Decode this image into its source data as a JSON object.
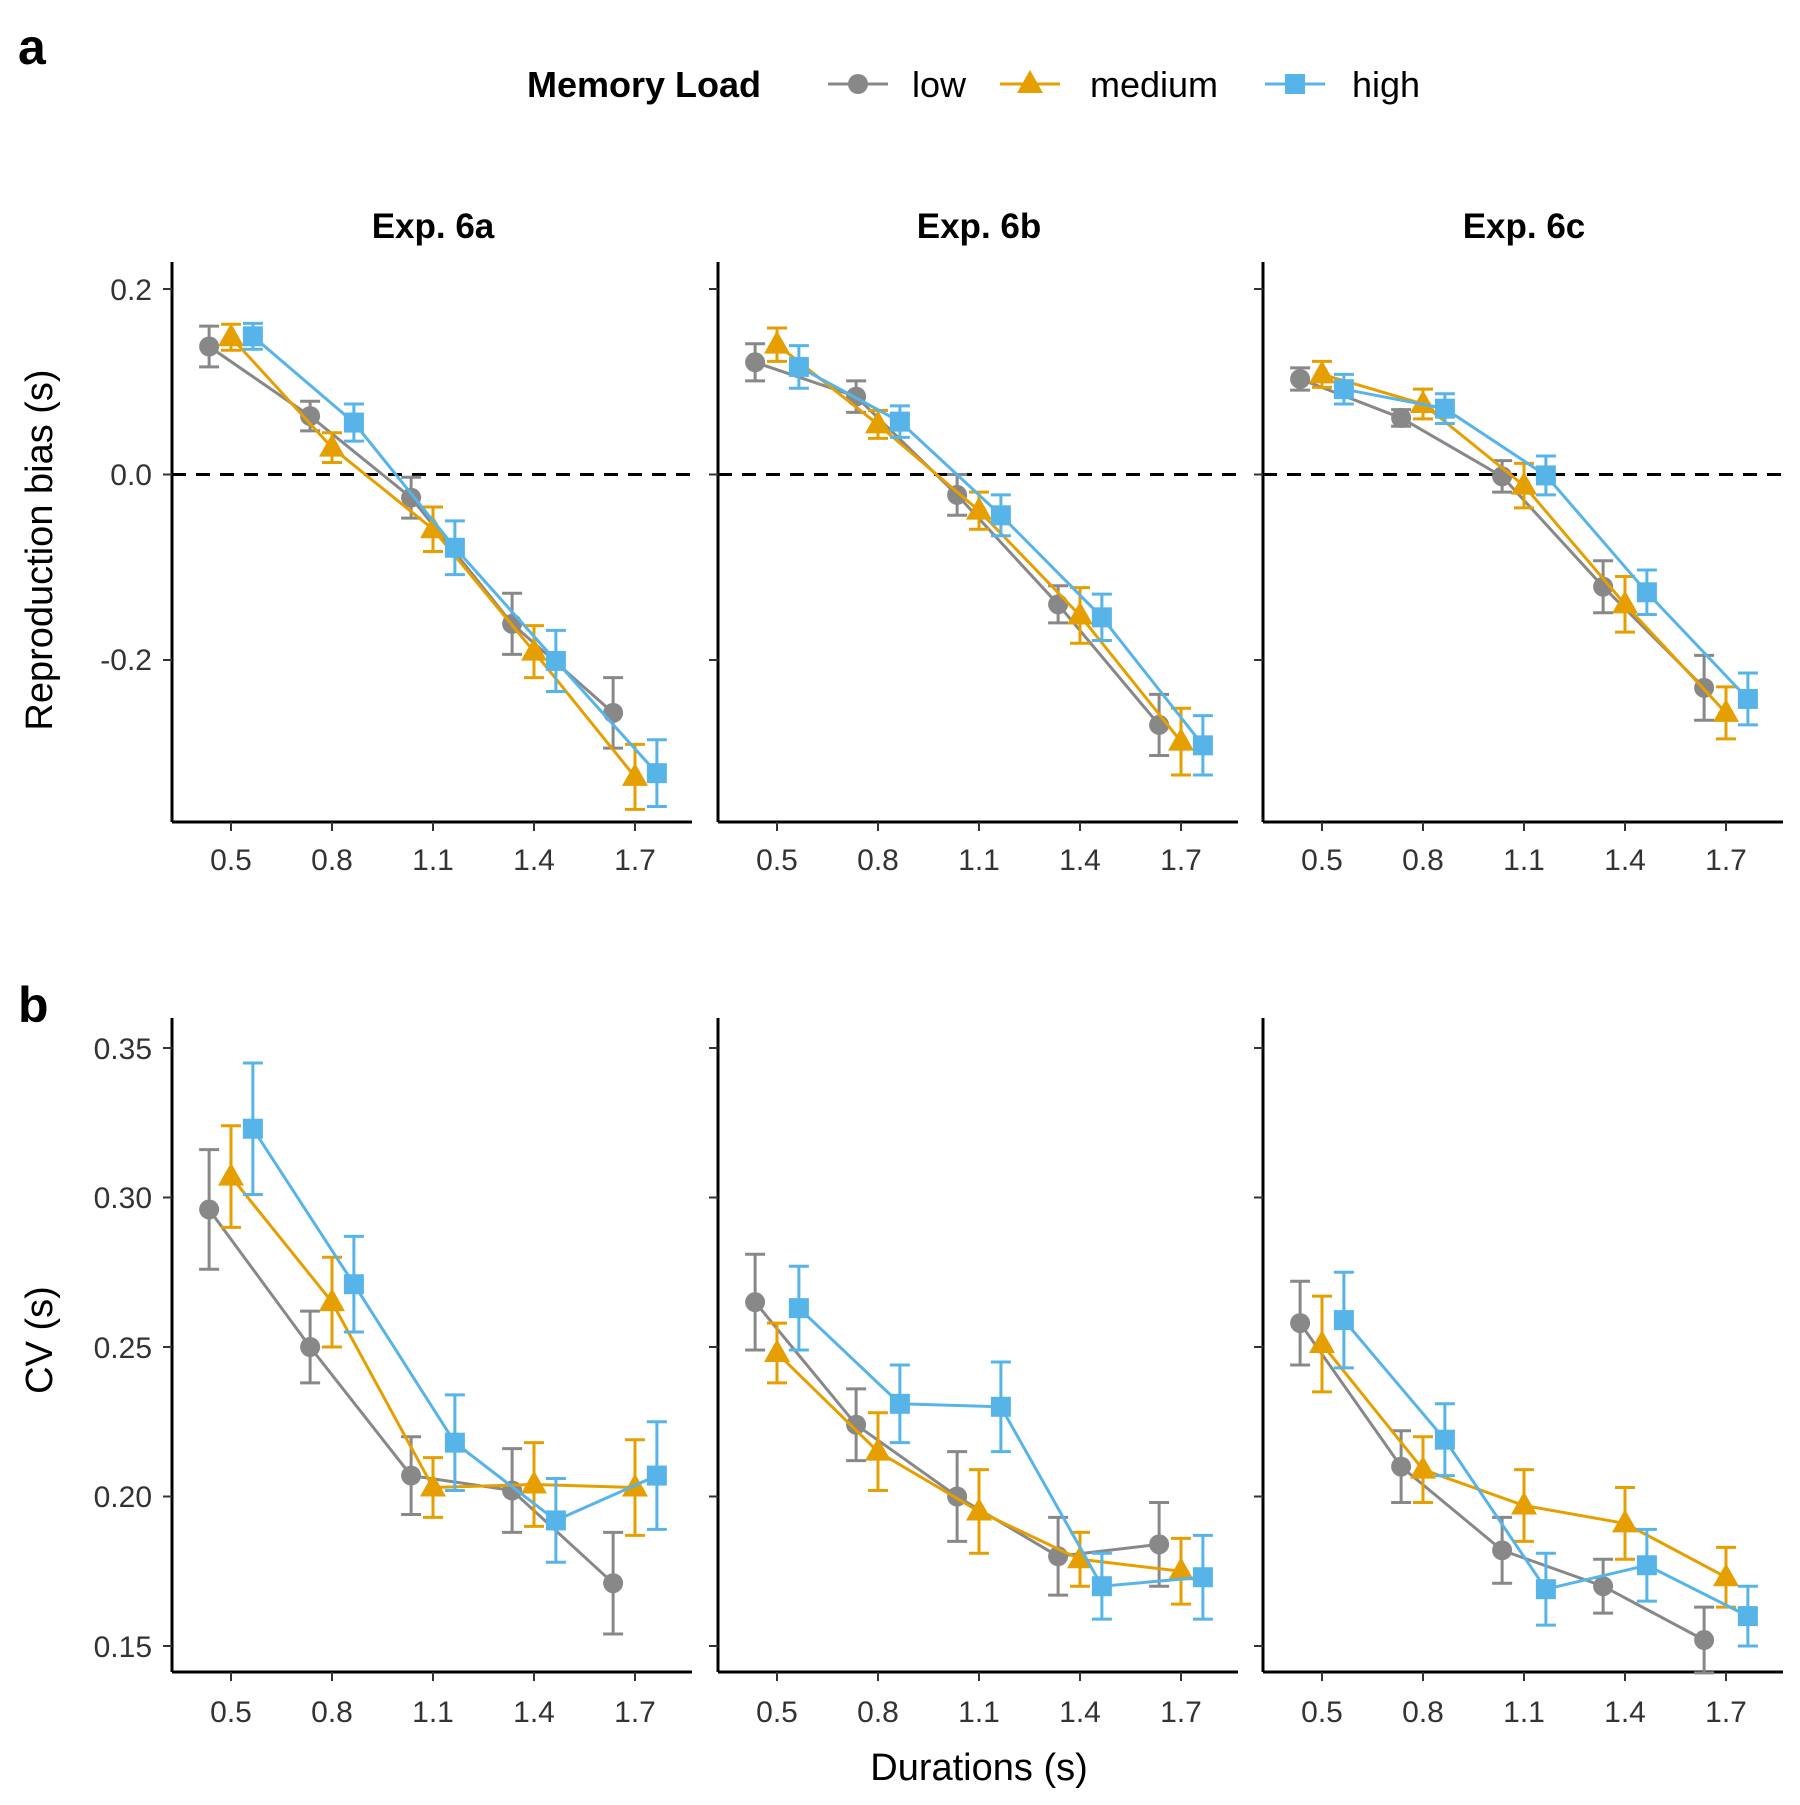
{
  "legend": {
    "title": "Memory Load",
    "items": [
      {
        "label": "low",
        "color": "#888888",
        "shape": "circle"
      },
      {
        "label": "medium",
        "color": "#E69F00",
        "shape": "triangle"
      },
      {
        "label": "high",
        "color": "#56B4E9",
        "shape": "square"
      }
    ]
  },
  "rows": [
    {
      "letter": "a",
      "ylabel": "Reproduction bias (s)",
      "yticks": [
        "0.2",
        "0.0",
        "-0.2"
      ]
    },
    {
      "letter": "b",
      "ylabel": "CV (s)",
      "yticks": [
        "0.35",
        "0.30",
        "0.25",
        "0.20",
        "0.15"
      ]
    }
  ],
  "columns": [
    "Exp. 6a",
    "Exp. 6b",
    "Exp. 6c"
  ],
  "xlabel": "Durations (s)",
  "xticks": [
    "0.5",
    "0.8",
    "1.1",
    "1.4",
    "1.7"
  ],
  "chart_data": [
    {
      "type": "line",
      "panel": "a",
      "ylabel": "Reproduction bias (s)",
      "ylim": [
        -0.37,
        0.225
      ],
      "reference_line": 0,
      "x": [
        0.5,
        0.8,
        1.1,
        1.4,
        1.7
      ],
      "facets": [
        {
          "title": "Exp. 6a",
          "series": [
            {
              "name": "low",
              "y": [
                0.138,
                0.063,
                -0.025,
                -0.161,
                -0.257
              ],
              "err": [
                0.022,
                0.016,
                0.022,
                0.033,
                0.038
              ]
            },
            {
              "name": "medium",
              "y": [
                0.148,
                0.029,
                -0.059,
                -0.191,
                -0.326
              ],
              "err": [
                0.014,
                0.016,
                0.024,
                0.028,
                0.035
              ]
            },
            {
              "name": "high",
              "y": [
                0.149,
                0.056,
                -0.079,
                -0.201,
                -0.322
              ],
              "err": [
                0.014,
                0.02,
                0.029,
                0.033,
                0.036
              ]
            }
          ]
        },
        {
          "title": "Exp. 6b",
          "series": [
            {
              "name": "low",
              "y": [
                0.121,
                0.084,
                -0.022,
                -0.14,
                -0.27
              ],
              "err": [
                0.02,
                0.017,
                0.022,
                0.02,
                0.033
              ]
            },
            {
              "name": "medium",
              "y": [
                0.14,
                0.054,
                -0.039,
                -0.152,
                -0.288
              ],
              "err": [
                0.018,
                0.015,
                0.02,
                0.03,
                0.036
              ]
            },
            {
              "name": "high",
              "y": [
                0.116,
                0.057,
                -0.044,
                -0.154,
                -0.292
              ],
              "err": [
                0.023,
                0.017,
                0.022,
                0.025,
                0.032
              ]
            }
          ]
        },
        {
          "title": "Exp. 6c",
          "series": [
            {
              "name": "low",
              "y": [
                0.103,
                0.061,
                -0.002,
                -0.121,
                -0.23
              ],
              "err": [
                0.012,
                0.009,
                0.017,
                0.028,
                0.035
              ]
            },
            {
              "name": "medium",
              "y": [
                0.108,
                0.076,
                -0.012,
                -0.14,
                -0.257
              ],
              "err": [
                0.014,
                0.016,
                0.024,
                0.03,
                0.028
              ]
            },
            {
              "name": "high",
              "y": [
                0.092,
                0.071,
                -0.001,
                -0.127,
                -0.242
              ],
              "err": [
                0.016,
                0.016,
                0.021,
                0.024,
                0.028
              ]
            }
          ]
        }
      ]
    },
    {
      "type": "line",
      "panel": "b",
      "ylabel": "CV (s)",
      "ylim": [
        0.141,
        0.36
      ],
      "x": [
        0.5,
        0.8,
        1.1,
        1.4,
        1.7
      ],
      "facets": [
        {
          "title": "Exp. 6a",
          "series": [
            {
              "name": "low",
              "y": [
                0.296,
                0.25,
                0.207,
                0.202,
                0.171
              ],
              "err": [
                0.02,
                0.012,
                0.013,
                0.014,
                0.017
              ]
            },
            {
              "name": "medium",
              "y": [
                0.307,
                0.265,
                0.203,
                0.204,
                0.203
              ],
              "err": [
                0.017,
                0.015,
                0.01,
                0.014,
                0.016
              ]
            },
            {
              "name": "high",
              "y": [
                0.323,
                0.271,
                0.218,
                0.192,
                0.207
              ],
              "err": [
                0.022,
                0.016,
                0.016,
                0.014,
                0.018
              ]
            }
          ]
        },
        {
          "title": "Exp. 6b",
          "series": [
            {
              "name": "low",
              "y": [
                0.265,
                0.224,
                0.2,
                0.18,
                0.184
              ],
              "err": [
                0.016,
                0.012,
                0.015,
                0.013,
                0.014
              ]
            },
            {
              "name": "medium",
              "y": [
                0.248,
                0.215,
                0.195,
                0.179,
                0.175
              ],
              "err": [
                0.01,
                0.013,
                0.014,
                0.009,
                0.011
              ]
            },
            {
              "name": "high",
              "y": [
                0.263,
                0.231,
                0.23,
                0.17,
                0.173
              ],
              "err": [
                0.014,
                0.013,
                0.015,
                0.011,
                0.014
              ]
            }
          ]
        },
        {
          "title": "Exp. 6c",
          "series": [
            {
              "name": "low",
              "y": [
                0.258,
                0.21,
                0.182,
                0.17,
                0.152
              ],
              "err": [
                0.014,
                0.012,
                0.011,
                0.009,
                0.011
              ]
            },
            {
              "name": "medium",
              "y": [
                0.251,
                0.209,
                0.197,
                0.191,
                0.173
              ],
              "err": [
                0.016,
                0.011,
                0.012,
                0.012,
                0.01
              ]
            },
            {
              "name": "high",
              "y": [
                0.259,
                0.219,
                0.169,
                0.177,
                0.16
              ],
              "err": [
                0.016,
                0.012,
                0.012,
                0.012,
                0.01
              ]
            }
          ]
        }
      ]
    }
  ]
}
